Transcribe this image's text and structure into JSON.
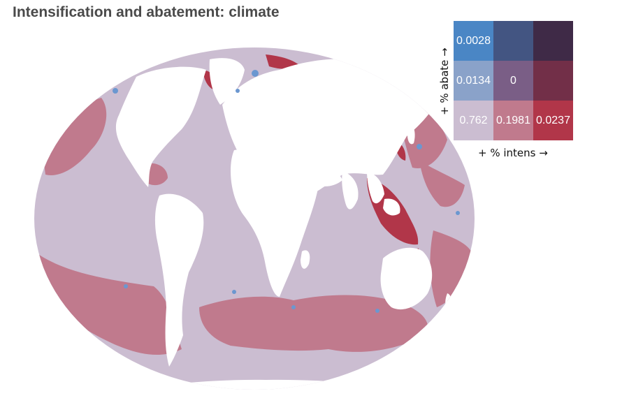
{
  "title": "Intensification and abatement: climate",
  "legend": {
    "x_label": "+ % intens →",
    "y_label": "+ % abate →",
    "cells": [
      {
        "row": 0,
        "col": 0,
        "value": "0.0028",
        "color": "#4a86c5"
      },
      {
        "row": 0,
        "col": 1,
        "value": "",
        "color": "#435582"
      },
      {
        "row": 0,
        "col": 2,
        "value": "",
        "color": "#3f2a47"
      },
      {
        "row": 1,
        "col": 0,
        "value": "0.0134",
        "color": "#8aa2c9"
      },
      {
        "row": 1,
        "col": 1,
        "value": "0",
        "color": "#7a5e86"
      },
      {
        "row": 1,
        "col": 2,
        "value": "",
        "color": "#722f48"
      },
      {
        "row": 2,
        "col": 0,
        "value": "0.762",
        "color": "#cbbdd1"
      },
      {
        "row": 2,
        "col": 1,
        "value": "0.1981",
        "color": "#c07a8d"
      },
      {
        "row": 2,
        "col": 2,
        "value": "0.0237",
        "color": "#b13649"
      }
    ]
  },
  "map": {
    "ocean_color": "#cbbdd1",
    "land_color": "#ffffff",
    "intens_color": "#c07a8d",
    "high_intens_color": "#b13649",
    "abate_color": "#6b97d0"
  }
}
